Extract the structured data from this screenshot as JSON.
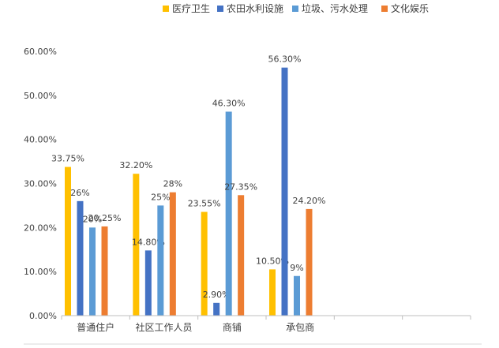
{
  "chart_data": {
    "type": "bar",
    "categories": [
      "普通住户",
      "社区工作人员",
      "商铺",
      "承包商"
    ],
    "series": [
      {
        "name": "医疗卫生",
        "values": [
          33.75,
          32.2,
          23.55,
          10.5
        ],
        "labels": [
          "33.75%",
          "32.20%",
          "23.55%",
          "10.50%"
        ]
      },
      {
        "name": "农田水利设施",
        "values": [
          26,
          14.8,
          2.9,
          56.3
        ],
        "labels": [
          "26%",
          "14.80%",
          "2.90%",
          "56.30%"
        ]
      },
      {
        "name": "垃圾、污水处理",
        "values": [
          20,
          25,
          46.3,
          9
        ],
        "labels": [
          "20%",
          "25%",
          "46.30%",
          "9%"
        ]
      },
      {
        "name": "文化娱乐",
        "values": [
          20.25,
          28,
          27.35,
          24.2
        ],
        "labels": [
          "20.25%",
          "28%",
          "27.35%",
          "24.20%"
        ]
      }
    ],
    "colors": [
      "#FFC000",
      "#4472C4",
      "#5B9BD5",
      "#ED7D31"
    ],
    "yticks": [
      "0.00%",
      "10.00%",
      "20.00%",
      "30.00%",
      "40.00%",
      "50.00%",
      "60.00%"
    ],
    "ylim": [
      0,
      60
    ],
    "empty_category_slots": 2,
    "legend_position": "top",
    "grid": false
  }
}
